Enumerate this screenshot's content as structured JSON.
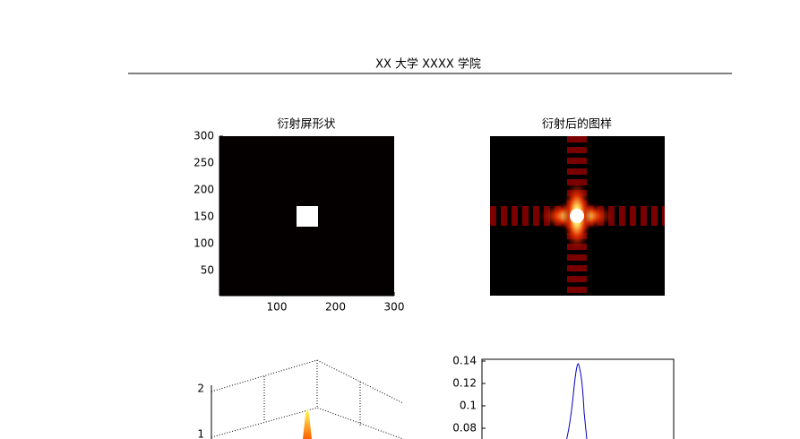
{
  "header": {
    "title": "XX 大学 XXXX 学院"
  },
  "figures": [
    {
      "title": "衍射屏形状",
      "yticks": [
        300,
        250,
        200,
        150,
        100,
        50
      ],
      "xticks": [
        100,
        200,
        300
      ]
    },
    {
      "title": "衍射后的图样"
    },
    {
      "zticks": [
        2,
        1
      ]
    },
    {
      "yticks": [
        0.14,
        0.12,
        0.1,
        0.08
      ]
    }
  ]
}
